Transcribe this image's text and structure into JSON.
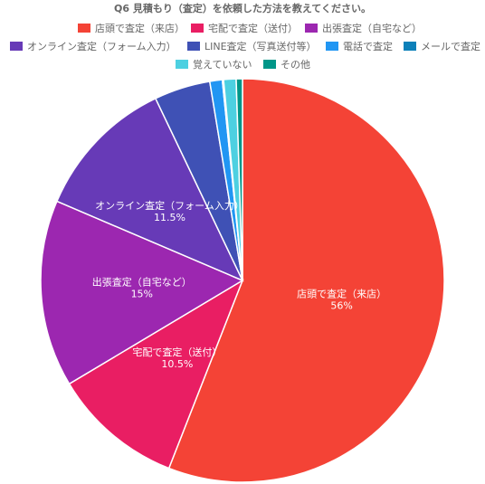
{
  "chart_data": {
    "type": "pie",
    "title": "Q6 見積もり（査定）を依頼した方法を教えてください。",
    "legend_position": "top",
    "slices": [
      {
        "label": "店頭で査定（来店）",
        "value": 56,
        "value_label": "56%",
        "color": "#f44336",
        "show_label": true
      },
      {
        "label": "宅配で査定（送付）",
        "value": 10.5,
        "value_label": "10.5%",
        "color": "#e91e63",
        "show_label": true
      },
      {
        "label": "出張査定（自宅など）",
        "value": 15,
        "value_label": "15%",
        "color": "#9c27b0",
        "show_label": true
      },
      {
        "label": "オンライン査定（フォーム入力）",
        "value": 11.5,
        "value_label": "11.5%",
        "color": "#673ab7",
        "show_label": true
      },
      {
        "label": "LINE査定（写真送付等）",
        "value": 4.5,
        "value_label": "",
        "color": "#3f51b5",
        "show_label": false
      },
      {
        "label": "電話で査定",
        "value": 1,
        "value_label": "",
        "color": "#2196f3",
        "show_label": false
      },
      {
        "label": "メールで査定",
        "value": 0.1,
        "value_label": "",
        "color": "#0d80b9",
        "show_label": false
      },
      {
        "label": "覚えていない",
        "value": 1,
        "value_label": "",
        "color": "#4dd0e1",
        "show_label": false
      },
      {
        "label": "その他",
        "value": 0.5,
        "value_label": "",
        "color": "#009688",
        "show_label": false
      }
    ]
  }
}
